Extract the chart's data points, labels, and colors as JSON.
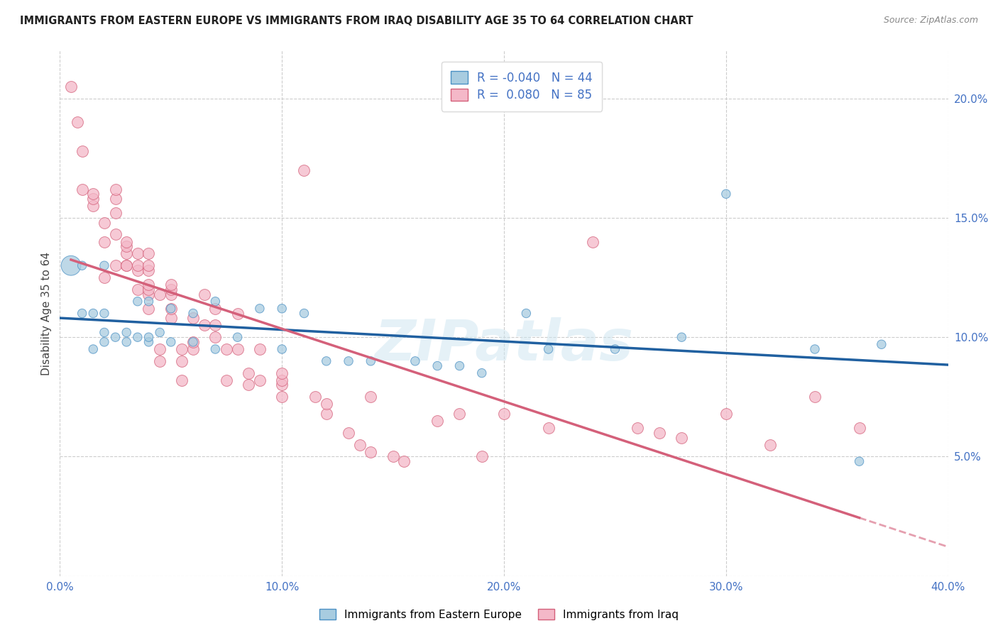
{
  "title": "IMMIGRANTS FROM EASTERN EUROPE VS IMMIGRANTS FROM IRAQ DISABILITY AGE 35 TO 64 CORRELATION CHART",
  "source": "Source: ZipAtlas.com",
  "ylabel": "Disability Age 35 to 64",
  "xlim": [
    0.0,
    0.4
  ],
  "ylim": [
    0.0,
    0.22
  ],
  "xticks": [
    0.0,
    0.1,
    0.2,
    0.3,
    0.4
  ],
  "yticks": [
    0.0,
    0.05,
    0.1,
    0.15,
    0.2
  ],
  "xtick_labels": [
    "0.0%",
    "10.0%",
    "20.0%",
    "30.0%",
    "40.0%"
  ],
  "ytick_labels": [
    "",
    "5.0%",
    "10.0%",
    "15.0%",
    "20.0%"
  ],
  "legend1_label": "Immigrants from Eastern Europe",
  "legend2_label": "Immigrants from Iraq",
  "r_blue": -0.04,
  "n_blue": 44,
  "r_pink": 0.08,
  "n_pink": 85,
  "blue_color": "#a8cce0",
  "pink_color": "#f4b8c8",
  "blue_edge_color": "#4a90c4",
  "pink_edge_color": "#d4607a",
  "blue_line_color": "#2060a0",
  "pink_line_color": "#d4607a",
  "watermark": "ZIPatlas",
  "blue_scatter_x": [
    0.005,
    0.01,
    0.01,
    0.015,
    0.015,
    0.02,
    0.02,
    0.02,
    0.02,
    0.025,
    0.03,
    0.03,
    0.035,
    0.035,
    0.04,
    0.04,
    0.04,
    0.045,
    0.05,
    0.05,
    0.06,
    0.06,
    0.07,
    0.07,
    0.08,
    0.09,
    0.1,
    0.1,
    0.11,
    0.12,
    0.13,
    0.14,
    0.16,
    0.17,
    0.18,
    0.19,
    0.21,
    0.22,
    0.25,
    0.28,
    0.3,
    0.34,
    0.36,
    0.37
  ],
  "blue_scatter_y": [
    0.13,
    0.11,
    0.13,
    0.095,
    0.11,
    0.098,
    0.102,
    0.11,
    0.13,
    0.1,
    0.098,
    0.102,
    0.1,
    0.115,
    0.098,
    0.1,
    0.115,
    0.102,
    0.098,
    0.112,
    0.098,
    0.11,
    0.095,
    0.115,
    0.1,
    0.112,
    0.095,
    0.112,
    0.11,
    0.09,
    0.09,
    0.09,
    0.09,
    0.088,
    0.088,
    0.085,
    0.11,
    0.095,
    0.095,
    0.1,
    0.16,
    0.095,
    0.048,
    0.097
  ],
  "blue_scatter_size": [
    400,
    80,
    80,
    80,
    80,
    80,
    80,
    80,
    80,
    80,
    80,
    80,
    80,
    80,
    80,
    80,
    80,
    80,
    80,
    80,
    80,
    80,
    80,
    80,
    80,
    80,
    80,
    80,
    80,
    80,
    80,
    80,
    80,
    80,
    80,
    80,
    80,
    80,
    80,
    80,
    80,
    80,
    80,
    80
  ],
  "pink_scatter_x": [
    0.005,
    0.008,
    0.01,
    0.01,
    0.015,
    0.015,
    0.015,
    0.02,
    0.02,
    0.02,
    0.025,
    0.025,
    0.025,
    0.025,
    0.025,
    0.03,
    0.03,
    0.03,
    0.03,
    0.03,
    0.035,
    0.035,
    0.035,
    0.035,
    0.04,
    0.04,
    0.04,
    0.04,
    0.04,
    0.04,
    0.04,
    0.045,
    0.045,
    0.045,
    0.05,
    0.05,
    0.05,
    0.05,
    0.05,
    0.055,
    0.055,
    0.055,
    0.06,
    0.06,
    0.06,
    0.065,
    0.065,
    0.07,
    0.07,
    0.07,
    0.075,
    0.075,
    0.08,
    0.08,
    0.085,
    0.085,
    0.09,
    0.09,
    0.1,
    0.1,
    0.1,
    0.1,
    0.11,
    0.115,
    0.12,
    0.12,
    0.13,
    0.135,
    0.14,
    0.14,
    0.15,
    0.155,
    0.17,
    0.18,
    0.19,
    0.2,
    0.22,
    0.24,
    0.26,
    0.27,
    0.28,
    0.3,
    0.32,
    0.34,
    0.36
  ],
  "pink_scatter_y": [
    0.205,
    0.19,
    0.162,
    0.178,
    0.155,
    0.158,
    0.16,
    0.14,
    0.148,
    0.125,
    0.13,
    0.143,
    0.152,
    0.158,
    0.162,
    0.13,
    0.135,
    0.138,
    0.14,
    0.13,
    0.12,
    0.128,
    0.13,
    0.135,
    0.112,
    0.118,
    0.12,
    0.122,
    0.128,
    0.13,
    0.135,
    0.09,
    0.095,
    0.118,
    0.108,
    0.112,
    0.118,
    0.12,
    0.122,
    0.082,
    0.09,
    0.095,
    0.095,
    0.098,
    0.108,
    0.105,
    0.118,
    0.1,
    0.105,
    0.112,
    0.082,
    0.095,
    0.095,
    0.11,
    0.08,
    0.085,
    0.082,
    0.095,
    0.075,
    0.08,
    0.082,
    0.085,
    0.17,
    0.075,
    0.068,
    0.072,
    0.06,
    0.055,
    0.052,
    0.075,
    0.05,
    0.048,
    0.065,
    0.068,
    0.05,
    0.068,
    0.062,
    0.14,
    0.062,
    0.06,
    0.058,
    0.068,
    0.055,
    0.075,
    0.062
  ]
}
